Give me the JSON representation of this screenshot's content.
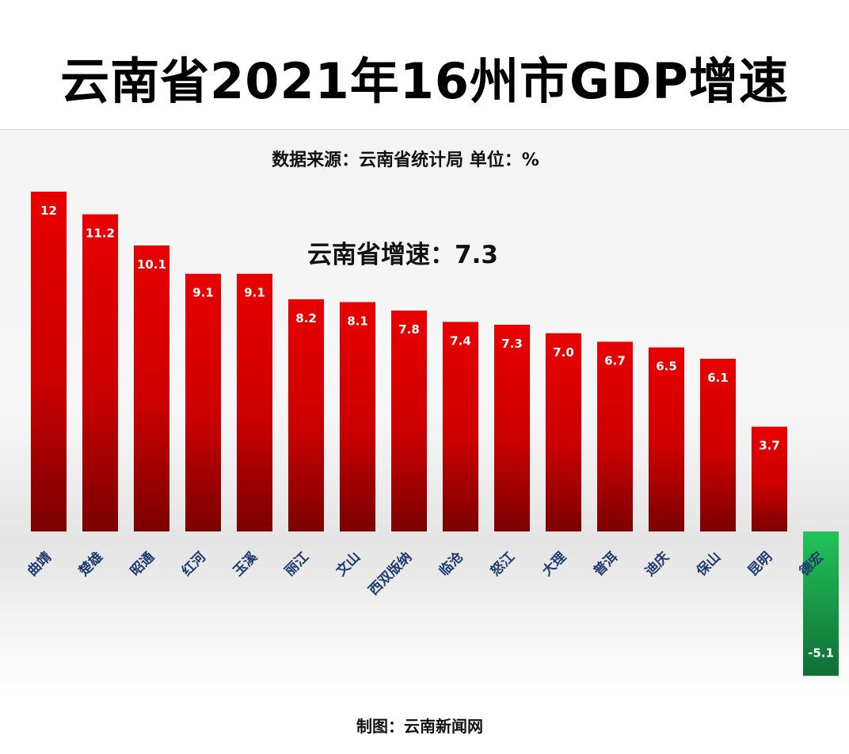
{
  "header": {
    "title": "云南省2021年16州市GDP增速",
    "subtitle": "数据来源：云南省统计局 单位：%"
  },
  "annotation": "云南省增速：7.3",
  "footer": {
    "credit": "制图：云南新闻网"
  },
  "colors": {
    "positive_top": "#e80000",
    "positive_bottom": "#7a0000",
    "negative_top": "#22c35a",
    "negative_bottom": "#0f6e35",
    "label": "#1f3a6e"
  },
  "chart_data": {
    "type": "bar",
    "categories": [
      "曲靖",
      "楚雄",
      "昭通",
      "红河",
      "玉溪",
      "丽江",
      "文山",
      "西双版纳",
      "临沧",
      "怒江",
      "大理",
      "普洱",
      "迪庆",
      "保山",
      "昆明",
      "德宏"
    ],
    "values": [
      12,
      11.2,
      10.1,
      9.1,
      9.1,
      8.2,
      8.1,
      7.8,
      7.4,
      7.3,
      7.0,
      6.7,
      6.5,
      6.1,
      3.7,
      -5.1
    ],
    "value_labels": [
      "12",
      "11.2",
      "10.1",
      "9.1",
      "9.1",
      "8.2",
      "8.1",
      "7.8",
      "7.4",
      "7.3",
      "7.0",
      "6.7",
      "6.5",
      "6.1",
      "3.7",
      "-5.1"
    ],
    "title": "云南省2021年16州市GDP增速",
    "unit": "%",
    "ylim": [
      -5.1,
      12
    ],
    "grid": false,
    "legend": "none"
  }
}
